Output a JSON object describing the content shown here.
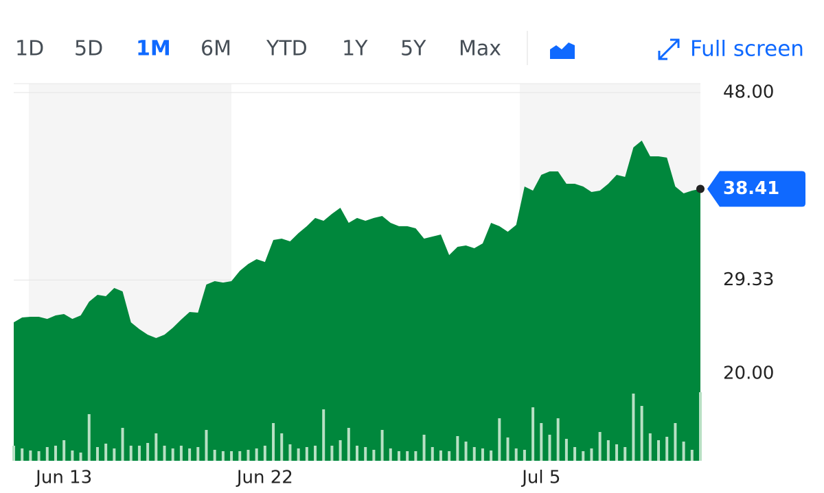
{
  "toolbar": {
    "ranges": [
      "1D",
      "5D",
      "1M",
      "6M",
      "YTD",
      "1Y",
      "5Y",
      "Max"
    ],
    "selected_index": 2,
    "fullscreen": "Full screen"
  },
  "chart_data": {
    "type": "area",
    "categories": [
      null,
      null,
      null,
      null,
      null,
      null,
      "Jun 13",
      null,
      null,
      null,
      null,
      null,
      null,
      null,
      null,
      null,
      null,
      null,
      null,
      null,
      null,
      null,
      null,
      null,
      null,
      null,
      null,
      null,
      null,
      null,
      "Jun 22",
      null,
      null,
      null,
      null,
      null,
      null,
      null,
      null,
      null,
      null,
      null,
      null,
      null,
      null,
      null,
      null,
      null,
      null,
      null,
      null,
      null,
      null,
      null,
      null,
      null,
      null,
      null,
      null,
      null,
      null,
      null,
      null,
      "Jul 5",
      null,
      null,
      null,
      null,
      null,
      null,
      null,
      null,
      null,
      null,
      null,
      null,
      null,
      null,
      null,
      null,
      null,
      null,
      null
    ],
    "series": [
      {
        "color": "#00873c",
        "values": [
          25.12,
          25.6,
          25.67,
          25.67,
          25.46,
          25.81,
          25.94,
          25.46,
          25.81,
          27.17,
          27.86,
          27.72,
          28.54,
          28.2,
          25.12,
          24.44,
          23.89,
          23.55,
          23.89,
          24.58,
          25.4,
          26.15,
          26.08,
          28.88,
          29.22,
          29.08,
          29.22,
          30.25,
          30.93,
          31.41,
          31.13,
          33.32,
          33.46,
          33.18,
          34.0,
          34.69,
          35.51,
          35.23,
          35.92,
          36.53,
          35.03,
          35.51,
          35.23,
          35.51,
          35.71,
          35.03,
          34.69,
          34.69,
          34.48,
          33.46,
          33.66,
          33.87,
          31.82,
          32.64,
          32.77,
          32.5,
          32.98,
          35.03,
          34.69,
          34.14,
          34.82,
          38.65,
          38.24,
          39.81,
          40.15,
          40.15,
          38.92,
          38.92,
          38.65,
          38.1,
          38.24,
          38.92,
          39.81,
          39.6,
          42.54,
          43.22,
          41.65,
          41.65,
          41.52,
          38.65,
          37.96,
          38.24,
          38.41
        ]
      }
    ],
    "volume": {
      "color": "#b8e0c4",
      "lim": [
        0,
        100
      ],
      "values": [
        22,
        18,
        15,
        14,
        20,
        22,
        30,
        15,
        12,
        68,
        20,
        25,
        18,
        48,
        22,
        22,
        26,
        40,
        22,
        18,
        22,
        18,
        20,
        45,
        16,
        14,
        14,
        14,
        16,
        18,
        22,
        55,
        40,
        24,
        18,
        20,
        22,
        75,
        22,
        30,
        48,
        22,
        20,
        16,
        45,
        18,
        14,
        14,
        14,
        38,
        20,
        15,
        14,
        36,
        28,
        20,
        18,
        15,
        62,
        34,
        18,
        16,
        78,
        55,
        38,
        62,
        32,
        20,
        14,
        18,
        42,
        30,
        24,
        20,
        98,
        80,
        40,
        30,
        35,
        55,
        28,
        16,
        100
      ],
      "note_free": true
    },
    "ylim": [
      11.33,
      48.89
    ],
    "yticks": [
      {
        "value": 48,
        "label": "48.00"
      },
      29.33,
      {
        "value": 20,
        "label": "20.00"
      }
    ],
    "grid": true
  }
}
